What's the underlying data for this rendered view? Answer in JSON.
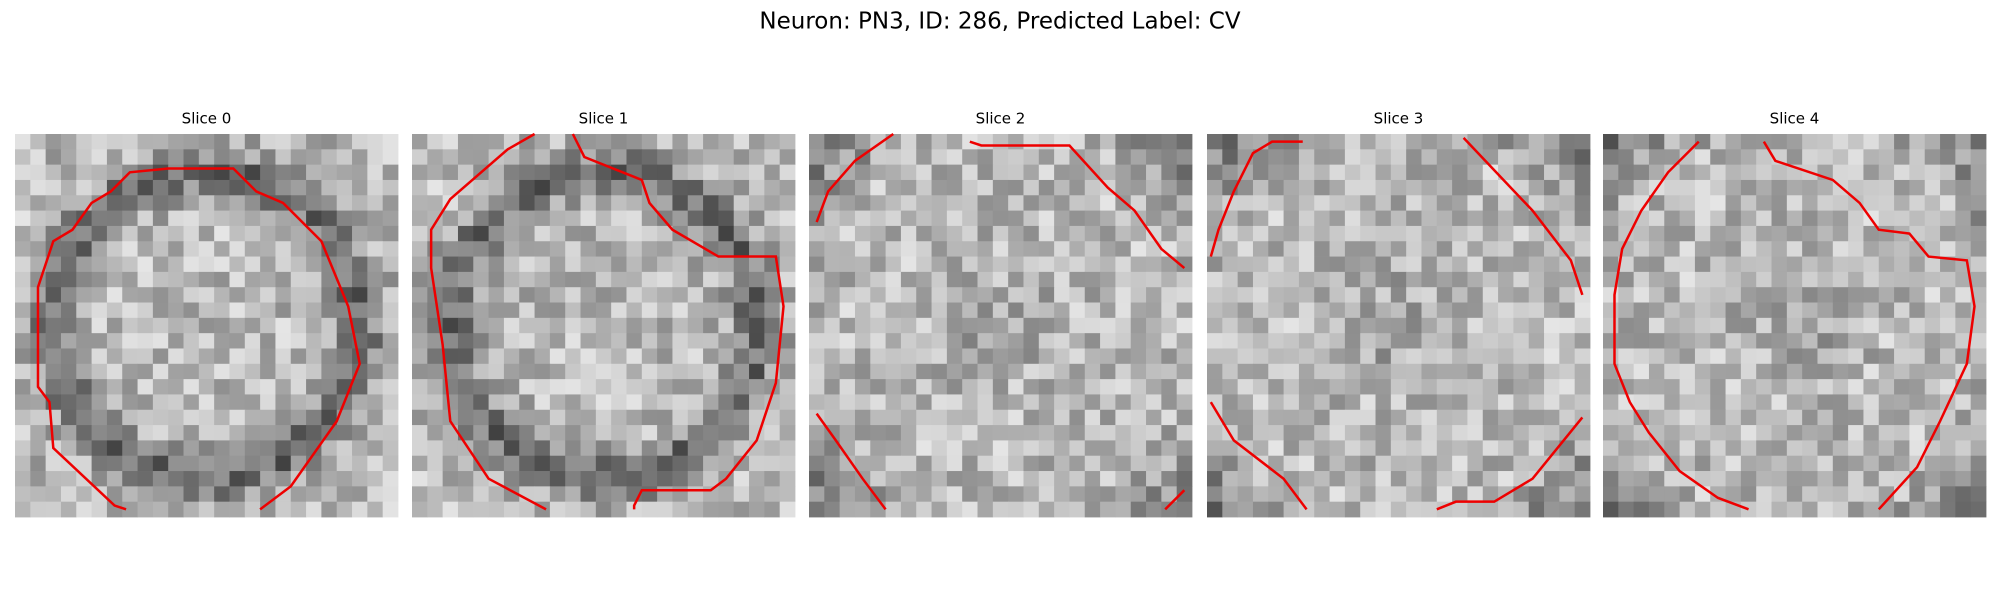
{
  "title": "Neuron: PN3, ID: 286, Predicted Label: CV",
  "panels": [
    {
      "title": "Slice 0"
    },
    {
      "title": "Slice 1"
    },
    {
      "title": "Slice 2"
    },
    {
      "title": "Slice 3"
    },
    {
      "title": "Slice 4"
    }
  ]
}
